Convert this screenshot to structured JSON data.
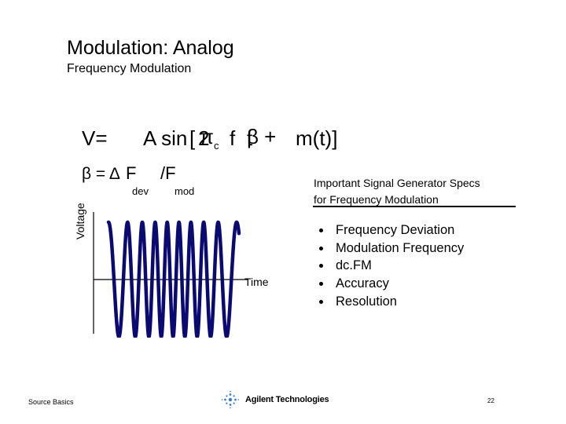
{
  "slide": {
    "title": "Modulation: Analog",
    "subtitle": "Frequency Modulation"
  },
  "formula": {
    "v_eq": "V=",
    "a_sin": "A sin",
    "bracket_open": "[",
    "two": "2",
    "pi": "π",
    "c_sub": "c",
    "f": "f",
    "t": "t",
    "beta_plus": "β +",
    "m_t_close": "m(t)]"
  },
  "beta_formula": {
    "beta_eq": "β = Δ",
    "F": "F",
    "dev_sub": "dev",
    "slash_F": "/F",
    "mod_sub": "mod"
  },
  "graph": {
    "y_label": "Voltage",
    "x_label": "Time"
  },
  "specs": {
    "heading_line1": "Important Signal Generator Specs",
    "heading_line2": "for Frequency Modulation",
    "items": [
      "Frequency Deviation",
      "Modulation Frequency",
      "dc.FM",
      "Accuracy",
      "Resolution"
    ]
  },
  "footer": {
    "left_text": "Source Basics",
    "logo_text": "Agilent Technologies",
    "page_number": "22"
  },
  "icons": {
    "logo": "agilent-spark-icon",
    "bullet": "bullet-dot-icon"
  }
}
